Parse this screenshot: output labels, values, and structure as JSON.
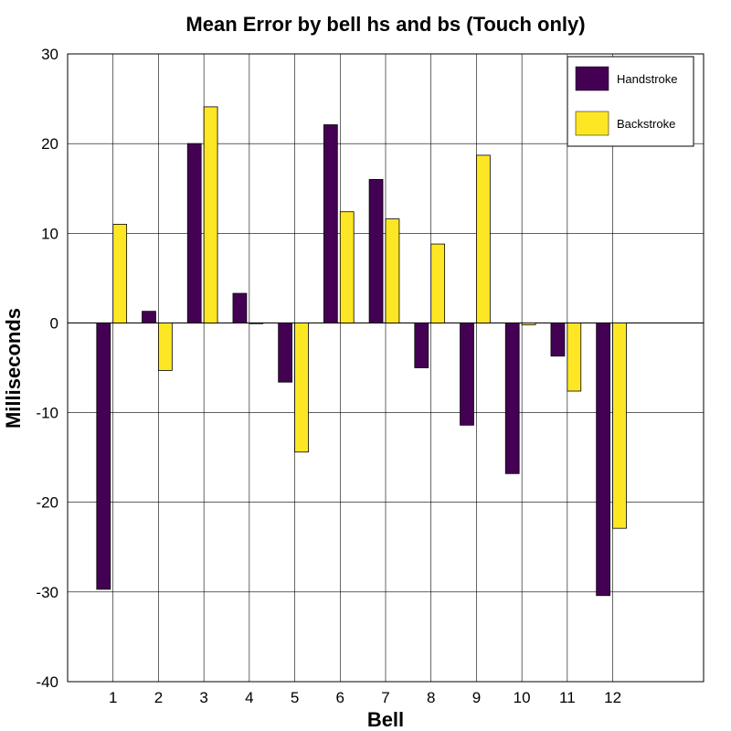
{
  "chart_data": {
    "type": "bar",
    "title": "Mean Error by bell hs and bs (Touch only)",
    "xlabel": "Bell",
    "ylabel": "Milliseconds",
    "categories": [
      "1",
      "2",
      "3",
      "4",
      "5",
      "6",
      "7",
      "8",
      "9",
      "10",
      "11",
      "12"
    ],
    "xlim": [
      0,
      14
    ],
    "ylim": [
      -40,
      30
    ],
    "yticks": [
      -40,
      -30,
      -20,
      -10,
      0,
      10,
      20,
      30
    ],
    "grid": true,
    "legend_position": "top-right",
    "series": [
      {
        "name": "Handstroke",
        "color": "#440154",
        "values": [
          -29.7,
          1.3,
          20.0,
          3.3,
          -6.6,
          22.1,
          16.0,
          -5.0,
          -11.4,
          -16.8,
          -3.7,
          -30.4
        ]
      },
      {
        "name": "Backstroke",
        "color": "#fde725",
        "values": [
          11.0,
          -5.3,
          24.1,
          0.0,
          -14.4,
          12.4,
          11.6,
          8.8,
          18.7,
          -0.2,
          -7.6,
          -22.9
        ]
      }
    ]
  }
}
